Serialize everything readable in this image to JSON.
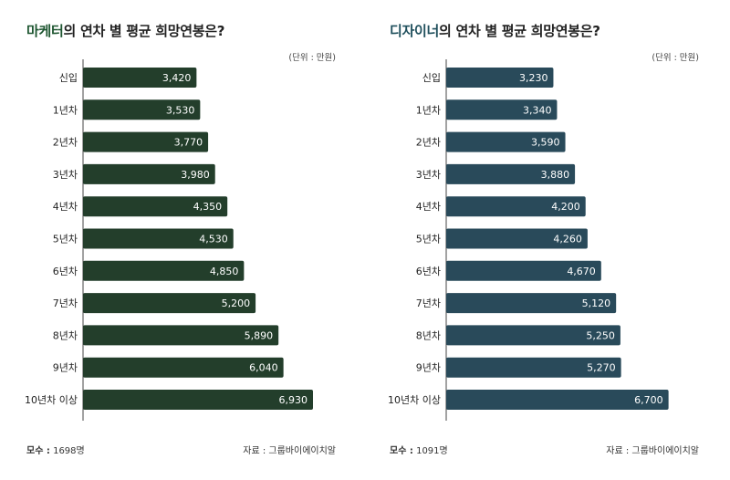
{
  "charts": [
    {
      "title_accent": "마케터",
      "title_rest": "의 연차 별 평균 희망연봉은?",
      "unit": "(단위 : 만원)",
      "sample_label": "모수 :",
      "sample_value": "1698명",
      "source": "자료 : 그룹바이에이치알",
      "accent_color": "#1e5631",
      "bar_color": "#233e2b"
    },
    {
      "title_accent": "디자이너",
      "title_rest": "의 연차 별 평균 희망연봉은?",
      "unit": "(단위 : 만원)",
      "sample_label": "모수 :",
      "sample_value": "1091명",
      "source": "자료 : 그룹바이에이치알",
      "accent_color": "#1f4f5c",
      "bar_color": "#294a5a"
    }
  ],
  "chart_data": [
    {
      "type": "bar",
      "orientation": "horizontal",
      "title": "마케터의 연차 별 평균 희망연봉은?",
      "unit": "만원",
      "categories": [
        "신입",
        "1년차",
        "2년차",
        "3년차",
        "4년차",
        "5년차",
        "6년차",
        "7년차",
        "8년차",
        "9년차",
        "10년차 이상"
      ],
      "values": [
        3420,
        3530,
        3770,
        3980,
        4350,
        4530,
        4850,
        5200,
        5890,
        6040,
        6930
      ],
      "labels": [
        "3,420",
        "3,530",
        "3,770",
        "3,980",
        "4,350",
        "4,530",
        "4,850",
        "5,200",
        "5,890",
        "6,040",
        "6,930"
      ],
      "xlim": [
        0,
        6930
      ]
    },
    {
      "type": "bar",
      "orientation": "horizontal",
      "title": "디자이너의 연차 별 평균 희망연봉은?",
      "unit": "만원",
      "categories": [
        "신입",
        "1년차",
        "2년차",
        "3년차",
        "4년차",
        "5년차",
        "6년차",
        "7년차",
        "8년차",
        "9년차",
        "10년차 이상"
      ],
      "values": [
        3230,
        3340,
        3590,
        3880,
        4200,
        4260,
        4670,
        5120,
        5250,
        5270,
        6700
      ],
      "labels": [
        "3,230",
        "3,340",
        "3,590",
        "3,880",
        "4,200",
        "4,260",
        "4,670",
        "5,120",
        "5,250",
        "5,270",
        "6,700"
      ],
      "xlim": [
        0,
        6930
      ]
    }
  ]
}
